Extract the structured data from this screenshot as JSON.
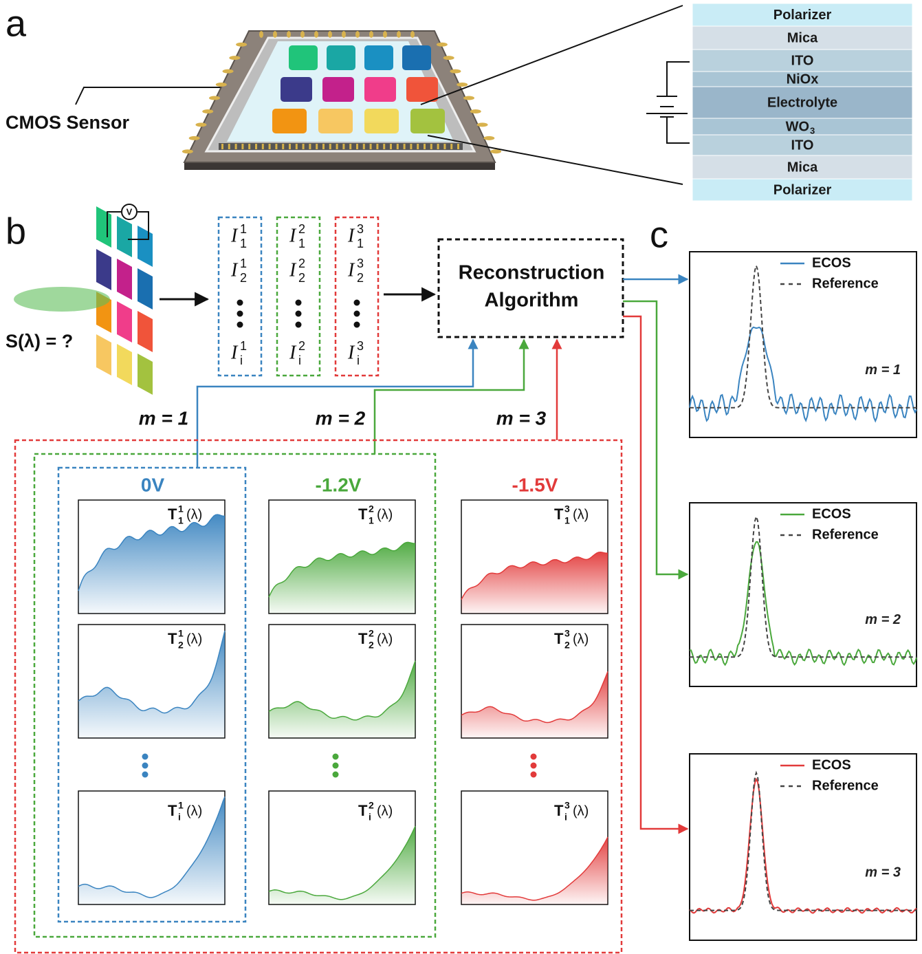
{
  "panel_a": {
    "label": "a",
    "sensor_label": "CMOS Sensor",
    "layers": [
      {
        "text": "Polarizer",
        "color": "#c9ecf6"
      },
      {
        "text": "Mica",
        "color": "#d5dfe7"
      },
      {
        "text": "ITO",
        "color": "#b9d1dd"
      },
      {
        "text": "NiOx",
        "color": "#a9c5d5"
      },
      {
        "text": "Electrolyte",
        "color": "#9ab6ca"
      },
      {
        "text": "WO",
        "sub": "3",
        "color": "#a9c5d5"
      },
      {
        "text": "ITO",
        "color": "#b9d1dd"
      },
      {
        "text": "Mica",
        "color": "#d5dfe7"
      },
      {
        "text": "Polarizer",
        "color": "#c9ecf6"
      }
    ]
  },
  "panel_b": {
    "label": "b",
    "input": "S(λ) = ?",
    "voltmeter": "V",
    "algorithm": [
      "Reconstruction",
      "Algorithm"
    ],
    "groups": [
      {
        "m": "m = 1",
        "voltage": "0V",
        "color": "#3a84c0",
        "currents": [
          {
            "base": "I",
            "sup": "1",
            "sub": "1"
          },
          {
            "base": "I",
            "sup": "1",
            "sub": "2"
          },
          {
            "base": "I",
            "sup": "1",
            "sub": "i"
          }
        ],
        "spectra": [
          {
            "base": "T",
            "sup": "1",
            "sub": "1",
            "arg": "(λ)"
          },
          {
            "base": "T",
            "sup": "1",
            "sub": "2",
            "arg": "(λ)"
          },
          {
            "base": "T",
            "sup": "1",
            "sub": "i",
            "arg": "(λ)"
          }
        ]
      },
      {
        "m": "m = 2",
        "voltage": "-1.2V",
        "color": "#4aa83c",
        "currents": [
          {
            "base": "I",
            "sup": "2",
            "sub": "1"
          },
          {
            "base": "I",
            "sup": "2",
            "sub": "2"
          },
          {
            "base": "I",
            "sup": "2",
            "sub": "i"
          }
        ],
        "spectra": [
          {
            "base": "T",
            "sup": "2",
            "sub": "1",
            "arg": "(λ)"
          },
          {
            "base": "T",
            "sup": "2",
            "sub": "2",
            "arg": "(λ)"
          },
          {
            "base": "T",
            "sup": "2",
            "sub": "i",
            "arg": "(λ)"
          }
        ]
      },
      {
        "m": "m = 3",
        "voltage": "-1.5V",
        "color": "#e23a3a",
        "currents": [
          {
            "base": "I",
            "sup": "3",
            "sub": "1"
          },
          {
            "base": "I",
            "sup": "3",
            "sub": "2"
          },
          {
            "base": "I",
            "sup": "3",
            "sub": "i"
          }
        ],
        "spectra": [
          {
            "base": "T",
            "sup": "3",
            "sub": "1",
            "arg": "(λ)"
          },
          {
            "base": "T",
            "sup": "3",
            "sub": "2",
            "arg": "(λ)"
          },
          {
            "base": "T",
            "sup": "3",
            "sub": "i",
            "arg": "(λ)"
          }
        ]
      }
    ]
  },
  "panel_c": {
    "label": "c",
    "plots": [
      {
        "legend": [
          "ECOS",
          "Reference"
        ],
        "m": "m = 1"
      },
      {
        "legend": [
          "ECOS",
          "Reference"
        ],
        "m": "m = 2"
      },
      {
        "legend": [
          "ECOS",
          "Reference"
        ],
        "m": "m = 3"
      }
    ]
  }
}
